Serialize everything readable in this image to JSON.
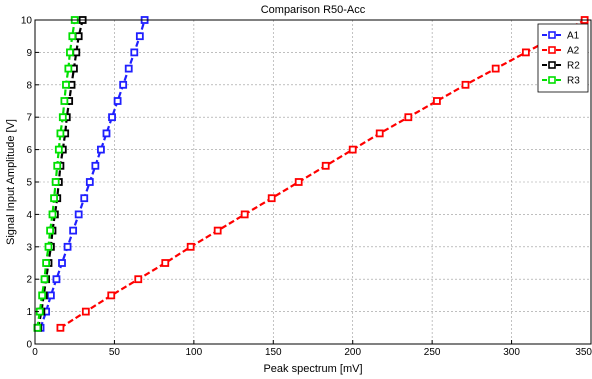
{
  "chart_data": {
    "type": "line",
    "title": "Comparison R50-Acc",
    "xlabel": "Peak spectrum [mV]",
    "ylabel": "Signal Input Amplitude [V]",
    "xlim": [
      0,
      350
    ],
    "ylim": [
      0,
      10
    ],
    "xticks": [
      0,
      50,
      100,
      150,
      200,
      250,
      300,
      350
    ],
    "yticks": [
      0,
      1,
      2,
      3,
      4,
      5,
      6,
      7,
      8,
      9,
      10
    ],
    "grid": true,
    "legend_position": "top-right",
    "series": [
      {
        "name": "A1",
        "color": "#1f1fff",
        "dashed": true,
        "x": [
          3.5,
          7,
          10,
          13.5,
          17,
          20.5,
          24,
          27.5,
          31,
          34.5,
          38,
          41.5,
          45,
          48.5,
          52,
          55.5,
          59,
          62.5,
          66,
          69
        ],
        "y": [
          0.5,
          1,
          1.5,
          2,
          2.5,
          3,
          3.5,
          4,
          4.5,
          5,
          5.5,
          6,
          6.5,
          7,
          7.5,
          8,
          8.5,
          9,
          9.5,
          10
        ]
      },
      {
        "name": "A2",
        "color": "#ff0000",
        "dashed": true,
        "x": [
          16,
          32,
          48,
          65,
          82,
          98,
          115,
          132,
          149,
          166,
          183,
          200,
          217,
          235,
          253,
          271,
          290,
          309,
          328,
          346
        ],
        "y": [
          0.5,
          1,
          1.5,
          2,
          2.5,
          3,
          3.5,
          4,
          4.5,
          5,
          5.5,
          6,
          6.5,
          7,
          7.5,
          8,
          8.5,
          9,
          9.5,
          10
        ]
      },
      {
        "name": "R2",
        "color": "#000000",
        "dashed": true,
        "x": [
          2,
          4,
          5.5,
          7,
          8.5,
          10,
          11,
          12.5,
          14,
          15,
          16,
          17.5,
          19,
          20,
          21.5,
          23,
          24.5,
          26,
          27.5,
          30
        ],
        "y": [
          0.5,
          1,
          1.5,
          2,
          2.5,
          3,
          3.5,
          4,
          4.5,
          5,
          5.5,
          6,
          6.5,
          7,
          7.5,
          8,
          8.5,
          9,
          9.5,
          10
        ]
      },
      {
        "name": "R3",
        "color": "#00e000",
        "dashed": true,
        "x": [
          1.5,
          3,
          4.5,
          6,
          7,
          8.5,
          9.5,
          11,
          12,
          13,
          14,
          15,
          16,
          17.5,
          18.5,
          19.5,
          21,
          22,
          23.5,
          25
        ],
        "y": [
          0.5,
          1,
          1.5,
          2,
          2.5,
          3,
          3.5,
          4,
          4.5,
          5,
          5.5,
          6,
          6.5,
          7,
          7.5,
          8,
          8.5,
          9,
          9.5,
          10
        ]
      }
    ]
  }
}
